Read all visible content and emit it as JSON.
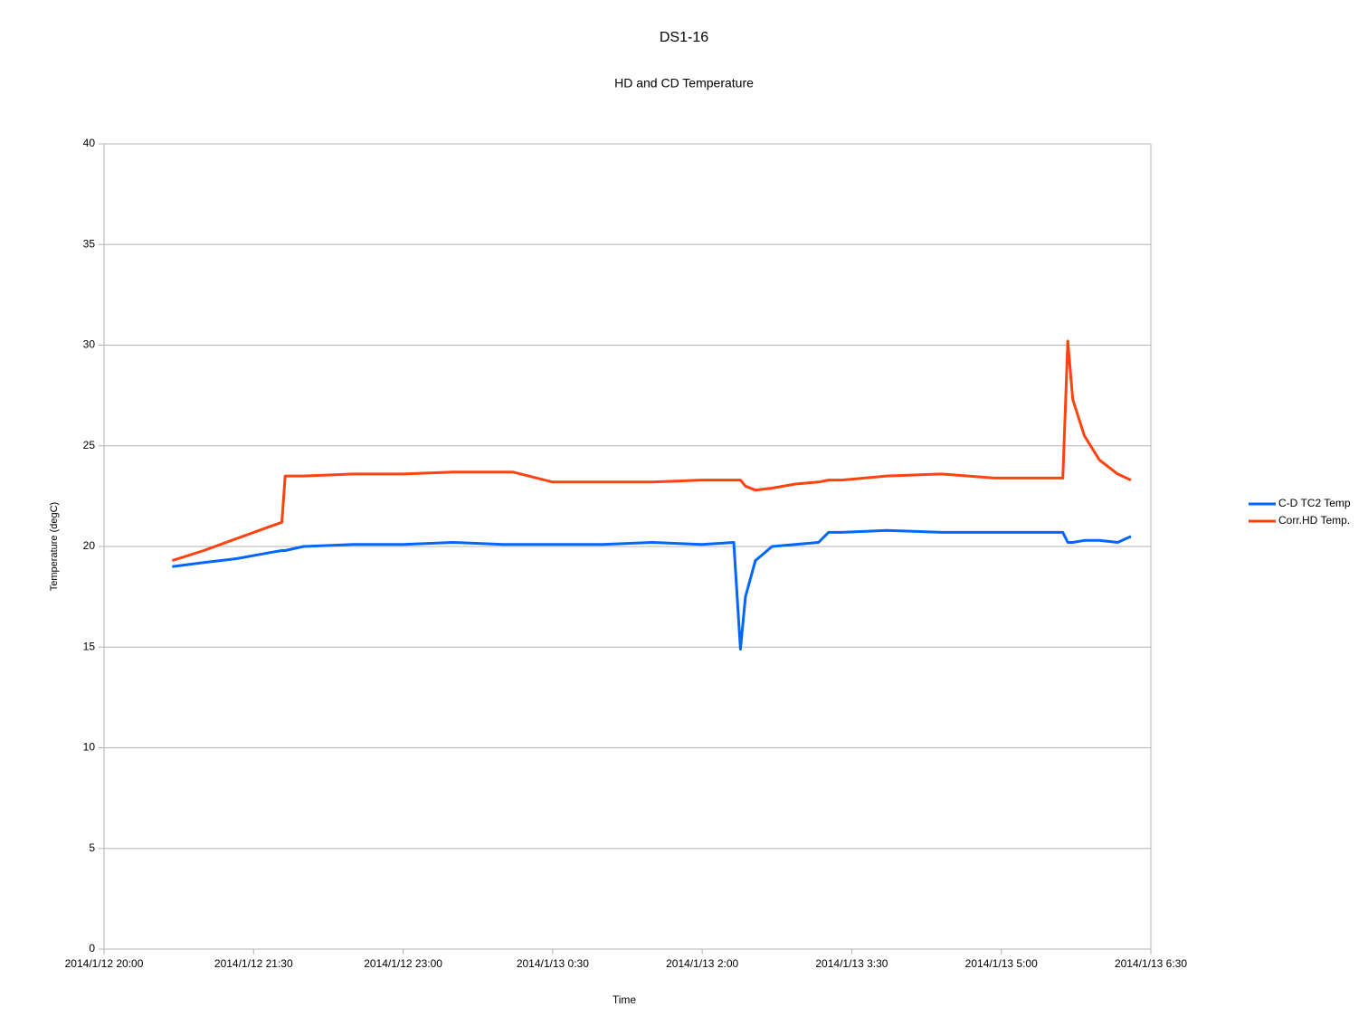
{
  "chart_data": {
    "type": "line",
    "title": "DS1-16",
    "subtitle": "HD and CD Temperature",
    "x_label": "Time",
    "y_label": "Temperature (degC)",
    "x": [
      "2014/1/12 20:41",
      "2014/1/12 21:00",
      "2014/1/12 21:20",
      "2014/1/12 21:40",
      "2014/1/12 21:47",
      "2014/1/12 21:49",
      "2014/1/12 22:00",
      "2014/1/12 22:30",
      "2014/1/12 23:00",
      "2014/1/12 23:30",
      "2014/1/13 0:00",
      "2014/1/13 0:06",
      "2014/1/13 0:30",
      "2014/1/13 1:00",
      "2014/1/13 1:30",
      "2014/1/13 2:00",
      "2014/1/13 2:19",
      "2014/1/13 2:23",
      "2014/1/13 2:26",
      "2014/1/13 2:32",
      "2014/1/13 2:42",
      "2014/1/13 2:56",
      "2014/1/13 3:10",
      "2014/1/13 3:16",
      "2014/1/13 3:24",
      "2014/1/13 3:51",
      "2014/1/13 4:24",
      "2014/1/13 4:56",
      "2014/1/13 5:37",
      "2014/1/13 5:40",
      "2014/1/13 5:43",
      "2014/1/13 5:50",
      "2014/1/13 5:59",
      "2014/1/13 6:10",
      "2014/1/13 6:18"
    ],
    "series": [
      {
        "name": "C-D TC2 Temp",
        "color": "#0066ff",
        "values": [
          19.0,
          19.2,
          19.4,
          19.7,
          19.8,
          19.8,
          20.0,
          20.1,
          20.1,
          20.2,
          20.1,
          20.1,
          20.1,
          20.1,
          20.2,
          20.1,
          20.2,
          14.9,
          17.5,
          19.3,
          20.0,
          20.1,
          20.2,
          20.7,
          20.7,
          20.8,
          20.7,
          20.7,
          20.7,
          20.2,
          20.2,
          20.3,
          20.3,
          20.2,
          20.5
        ]
      },
      {
        "name": "Corr.HD Temp.",
        "color": "#ff420e",
        "values": [
          19.3,
          19.8,
          20.4,
          21.0,
          21.2,
          23.5,
          23.5,
          23.6,
          23.6,
          23.7,
          23.7,
          23.7,
          23.2,
          23.2,
          23.2,
          23.3,
          23.3,
          23.3,
          23.0,
          22.8,
          22.9,
          23.1,
          23.2,
          23.3,
          23.3,
          23.5,
          23.6,
          23.4,
          23.4,
          30.2,
          27.3,
          25.5,
          24.3,
          23.6,
          23.3
        ]
      }
    ],
    "xlim": [
      "2014/1/12 20:00",
      "2014/1/13 6:30"
    ],
    "xticks": [
      "2014/1/12 20:00",
      "2014/1/12 21:30",
      "2014/1/12 23:00",
      "2014/1/13 0:30",
      "2014/1/13 2:00",
      "2014/1/13 3:30",
      "2014/1/13 5:00",
      "2014/1/13 6:30"
    ],
    "ylim": [
      0,
      40
    ],
    "yticks": [
      0,
      5,
      10,
      15,
      20,
      25,
      30,
      35,
      40
    ],
    "grid": true,
    "legend": "right"
  }
}
